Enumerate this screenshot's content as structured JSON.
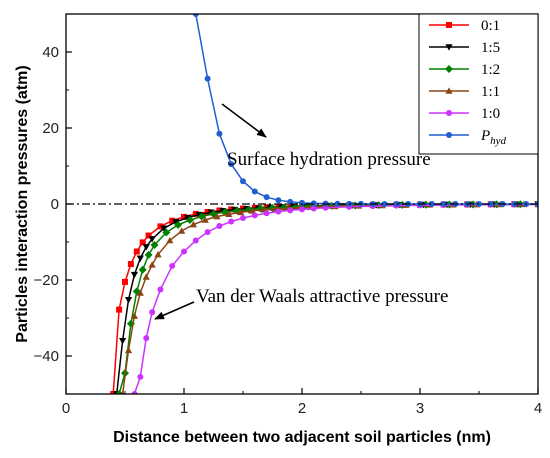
{
  "chart_data": {
    "type": "line",
    "xlabel": "Distance between two adjacent soil particles (nm)",
    "ylabel": "Particles interaction pressures (atm)",
    "xlim": [
      0,
      4
    ],
    "ylim": [
      -50,
      50
    ],
    "xticks": [
      0,
      1,
      2,
      3,
      4
    ],
    "yticks": [
      -40,
      -20,
      0,
      20,
      40
    ],
    "grid": false,
    "legend_position": "top-right",
    "reference_line": {
      "y": 0,
      "style": "dash-dot"
    },
    "annotations": [
      {
        "text": "Surface hydration pressure",
        "target_series": "P_hyd"
      },
      {
        "text": "Van der Waals attractive pressure",
        "target_series": "1:1"
      }
    ],
    "series": [
      {
        "name": "0:1",
        "color": "#ff0000",
        "marker": "square",
        "x": [
          0.4,
          0.45,
          0.5,
          0.55,
          0.6,
          0.65,
          0.7,
          0.8,
          0.9,
          1.0,
          1.1,
          1.2,
          1.3,
          1.4,
          1.5,
          1.6,
          1.7,
          1.8,
          1.9,
          2.0,
          2.2,
          2.4,
          2.6,
          2.8,
          3.0,
          3.2,
          3.4,
          3.6,
          3.8,
          4.0
        ],
        "y": [
          -50.0,
          -27.8,
          -20.5,
          -15.8,
          -12.5,
          -10.1,
          -8.3,
          -5.9,
          -4.4,
          -3.4,
          -2.6,
          -2.1,
          -1.7,
          -1.4,
          -1.2,
          -1.0,
          -0.85,
          -0.72,
          -0.62,
          -0.53,
          -0.4,
          -0.31,
          -0.24,
          -0.19,
          -0.15,
          -0.12,
          -0.1,
          -0.08,
          -0.07,
          -0.06
        ]
      },
      {
        "name": "1:5",
        "color": "#000000",
        "marker": "triangle-down",
        "x": [
          0.43,
          0.48,
          0.53,
          0.58,
          0.63,
          0.68,
          0.73,
          0.83,
          0.93,
          1.03,
          1.13,
          1.23,
          1.33,
          1.43,
          1.53,
          1.63,
          1.73,
          1.83,
          1.93,
          2.03,
          2.23,
          2.43,
          2.63,
          2.83,
          3.03,
          3.23,
          3.43,
          3.63,
          3.83,
          4.0
        ],
        "y": [
          -50.0,
          -36.0,
          -25.2,
          -18.6,
          -14.3,
          -11.3,
          -9.2,
          -6.4,
          -4.7,
          -3.6,
          -2.8,
          -2.2,
          -1.8,
          -1.5,
          -1.25,
          -1.05,
          -0.9,
          -0.77,
          -0.66,
          -0.57,
          -0.43,
          -0.33,
          -0.26,
          -0.2,
          -0.16,
          -0.13,
          -0.11,
          -0.09,
          -0.07,
          -0.06
        ]
      },
      {
        "name": "1:2",
        "color": "#008000",
        "marker": "diamond",
        "x": [
          0.45,
          0.5,
          0.55,
          0.6,
          0.65,
          0.7,
          0.75,
          0.85,
          0.95,
          1.05,
          1.15,
          1.25,
          1.35,
          1.45,
          1.55,
          1.65,
          1.75,
          1.85,
          1.95,
          2.05,
          2.25,
          2.45,
          2.65,
          2.85,
          3.05,
          3.25,
          3.45,
          3.65,
          3.85,
          4.0
        ],
        "y": [
          -50.0,
          -44.5,
          -31.5,
          -23.0,
          -17.3,
          -13.4,
          -10.8,
          -7.5,
          -5.5,
          -4.2,
          -3.3,
          -2.6,
          -2.1,
          -1.75,
          -1.45,
          -1.22,
          -1.04,
          -0.89,
          -0.77,
          -0.66,
          -0.5,
          -0.39,
          -0.3,
          -0.24,
          -0.19,
          -0.15,
          -0.12,
          -0.1,
          -0.08,
          -0.07
        ]
      },
      {
        "name": "1:1",
        "color": "#8b4513",
        "marker": "triangle-up",
        "x": [
          0.48,
          0.53,
          0.58,
          0.63,
          0.68,
          0.73,
          0.78,
          0.88,
          0.98,
          1.08,
          1.18,
          1.28,
          1.38,
          1.48,
          1.58,
          1.68,
          1.78,
          1.88,
          1.98,
          2.08,
          2.28,
          2.48,
          2.68,
          2.88,
          3.08,
          3.28,
          3.48,
          3.68,
          3.88,
          4.0
        ],
        "y": [
          -50.0,
          -38.5,
          -29.5,
          -23.4,
          -19.2,
          -16.0,
          -13.3,
          -9.6,
          -7.1,
          -5.4,
          -4.2,
          -3.3,
          -2.7,
          -2.2,
          -1.8,
          -1.5,
          -1.28,
          -1.1,
          -0.95,
          -0.82,
          -0.62,
          -0.48,
          -0.37,
          -0.29,
          -0.23,
          -0.19,
          -0.15,
          -0.12,
          -0.1,
          -0.09
        ]
      },
      {
        "name": "1:0",
        "color": "#cc33ff",
        "marker": "circle",
        "x": [
          0.58,
          0.63,
          0.68,
          0.73,
          0.8,
          0.9,
          1.0,
          1.1,
          1.2,
          1.3,
          1.4,
          1.5,
          1.6,
          1.7,
          1.8,
          1.9,
          2.0,
          2.1,
          2.2,
          2.4,
          2.6,
          2.8,
          3.0,
          3.2,
          3.4,
          3.6,
          3.8,
          4.0
        ],
        "y": [
          -50.0,
          -45.5,
          -35.3,
          -28.5,
          -22.5,
          -16.3,
          -12.5,
          -9.6,
          -7.4,
          -5.8,
          -4.6,
          -3.7,
          -3.0,
          -2.45,
          -2.0,
          -1.67,
          -1.4,
          -1.18,
          -1.0,
          -0.75,
          -0.57,
          -0.44,
          -0.35,
          -0.28,
          -0.22,
          -0.18,
          -0.15,
          -0.12
        ]
      },
      {
        "name": "P_hyd",
        "color": "#1f5fd0",
        "marker": "circle",
        "x": [
          1.1,
          1.2,
          1.3,
          1.4,
          1.5,
          1.6,
          1.7,
          1.8,
          1.9,
          2.0,
          2.1,
          2.2,
          2.3,
          2.4,
          2.5,
          2.6,
          2.7,
          2.8,
          2.9,
          3.0,
          3.1,
          3.2,
          3.3,
          3.4,
          3.5,
          3.6,
          3.7,
          3.8,
          3.9,
          4.0
        ],
        "y": [
          50.0,
          33.0,
          18.5,
          10.5,
          6.0,
          3.3,
          1.8,
          1.0,
          0.55,
          0.3,
          0.17,
          0.1,
          0.05,
          0.03,
          0.02,
          0.01,
          0.01,
          0.0,
          0.0,
          0.0,
          0.0,
          0.0,
          0.0,
          0.0,
          0.0,
          0.0,
          0.0,
          0.0,
          0.0,
          0.0
        ]
      }
    ]
  },
  "legend": {
    "labels": [
      "0:1",
      "1:5",
      "1:2",
      "1:1",
      "1:0"
    ],
    "phyd_main": "P",
    "phyd_sub": "hyd"
  }
}
